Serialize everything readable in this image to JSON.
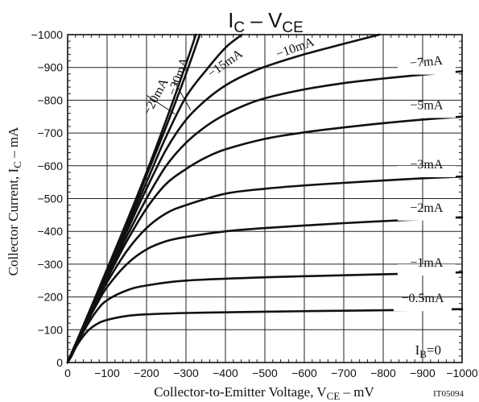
{
  "chart_data": {
    "type": "line",
    "title": {
      "main": "I",
      "sub1": "C",
      "mid": " – V",
      "sub2": "CE"
    },
    "xlabel": {
      "pre": "Collector-to-Emitter Voltage, V",
      "sub": "CE",
      "post": " – mV"
    },
    "ylabel": {
      "pre": "Collector Current, I",
      "sub": "C",
      "post": " – mA"
    },
    "code": "IT05094",
    "xlim": [
      0,
      -1000
    ],
    "ylim": [
      0,
      -1000
    ],
    "xticks": [
      0,
      -100,
      -200,
      -300,
      -400,
      -500,
      -600,
      -700,
      -800,
      -900,
      -1000
    ],
    "yticks": [
      0,
      -100,
      -200,
      -300,
      -400,
      -500,
      -600,
      -700,
      -800,
      -900,
      -1000
    ],
    "xtick_labels": [
      "0",
      "−100",
      "−200",
      "−300",
      "−400",
      "−500",
      "−600",
      "−700",
      "−800",
      "−900",
      "−1000"
    ],
    "ytick_labels": [
      "0",
      "−100",
      "−200",
      "−300",
      "−400",
      "−500",
      "−600",
      "−700",
      "−800",
      "−900",
      "−1000"
    ],
    "grid": true,
    "series": [
      {
        "name": "−0.5mA",
        "x": [
          0,
          -10,
          -25,
          -50,
          -75,
          -100,
          -150,
          -200,
          -300,
          -500,
          -700,
          -900,
          -1000
        ],
        "y": [
          0,
          -20,
          -55,
          -95,
          -118,
          -130,
          -142,
          -147,
          -151,
          -155,
          -158,
          -161,
          -163
        ]
      },
      {
        "name": "−1mA",
        "x": [
          0,
          -10,
          -25,
          -50,
          -75,
          -100,
          -150,
          -200,
          -300,
          -500,
          -700,
          -900,
          -1000
        ],
        "y": [
          0,
          -25,
          -60,
          -115,
          -160,
          -190,
          -220,
          -235,
          -250,
          -260,
          -266,
          -272,
          -275
        ]
      },
      {
        "name": "−2mA",
        "x": [
          0,
          -10,
          -25,
          -50,
          -75,
          -100,
          -150,
          -200,
          -250,
          -300,
          -400,
          -500,
          -700,
          -900,
          -1000
        ],
        "y": [
          0,
          -28,
          -65,
          -125,
          -180,
          -230,
          -300,
          -345,
          -370,
          -383,
          -400,
          -410,
          -425,
          -437,
          -443
        ]
      },
      {
        "name": "−3mA",
        "x": [
          0,
          -10,
          -25,
          -50,
          -75,
          -100,
          -150,
          -200,
          -250,
          -300,
          -400,
          -500,
          -600,
          -700,
          -800,
          -900,
          -1000
        ],
        "y": [
          0,
          -28,
          -65,
          -128,
          -190,
          -245,
          -340,
          -410,
          -455,
          -480,
          -515,
          -530,
          -540,
          -548,
          -555,
          -562,
          -567
        ]
      },
      {
        "name": "−5mA",
        "x": [
          0,
          -10,
          -25,
          -50,
          -75,
          -100,
          -150,
          -200,
          -250,
          -300,
          -350,
          -400,
          -500,
          -600,
          -700,
          -800,
          -900,
          -1000
        ],
        "y": [
          0,
          -28,
          -66,
          -130,
          -195,
          -255,
          -370,
          -470,
          -545,
          -590,
          -625,
          -650,
          -682,
          -702,
          -717,
          -730,
          -741,
          -750
        ]
      },
      {
        "name": "−7mA",
        "x": [
          0,
          -10,
          -25,
          -50,
          -75,
          -100,
          -150,
          -200,
          -250,
          -300,
          -350,
          -400,
          -450,
          -500,
          -600,
          -700,
          -800,
          -900,
          -1000
        ],
        "y": [
          0,
          -28,
          -67,
          -132,
          -198,
          -262,
          -385,
          -500,
          -600,
          -670,
          -720,
          -757,
          -785,
          -806,
          -833,
          -852,
          -866,
          -878,
          -888
        ]
      },
      {
        "name": "−10mA",
        "x": [
          0,
          -10,
          -25,
          -50,
          -75,
          -100,
          -150,
          -200,
          -250,
          -300,
          -350,
          -400,
          -450,
          -500,
          -600,
          -700,
          -790
        ],
        "y": [
          0,
          -28,
          -68,
          -134,
          -200,
          -268,
          -400,
          -530,
          -650,
          -740,
          -800,
          -845,
          -877,
          -902,
          -940,
          -972,
          -1000
        ]
      },
      {
        "name": "−15mA",
        "x": [
          0,
          -10,
          -25,
          -50,
          -75,
          -100,
          -150,
          -200,
          -250,
          -300,
          -350,
          -400,
          -442
        ],
        "y": [
          0,
          -28,
          -68,
          -136,
          -204,
          -272,
          -410,
          -550,
          -690,
          -810,
          -890,
          -960,
          -1000
        ]
      },
      {
        "name": "−20mA",
        "x": [
          0,
          -10,
          -25,
          -50,
          -75,
          -100,
          -150,
          -200,
          -250,
          -300,
          -335
        ],
        "y": [
          0,
          -29,
          -70,
          -140,
          -210,
          -280,
          -420,
          -570,
          -720,
          -880,
          -1000
        ]
      },
      {
        "name": "−30mA",
        "x": [
          0,
          -10,
          -25,
          -50,
          -75,
          -100,
          -150,
          -200,
          -250,
          -300,
          -325
        ],
        "y": [
          0,
          -29,
          -71,
          -142,
          -213,
          -285,
          -430,
          -580,
          -740,
          -910,
          -1000
        ]
      },
      {
        "name": "IB=0",
        "label_parts": {
          "main": "I",
          "sub": "B",
          "post": "=0"
        },
        "x": [
          0,
          -1000
        ],
        "y": [
          0,
          0
        ]
      }
    ],
    "labels": [
      {
        "series": "−20mA",
        "text": "−20mA",
        "at": [
          -232,
          -805
        ],
        "rotate": -62,
        "anchor": "middle",
        "leader": [
          [
            -200,
            -815
          ],
          [
            -272,
            -758
          ]
        ]
      },
      {
        "series": "−30mA",
        "text": "−30mA",
        "at": [
          -290,
          -868
        ],
        "rotate": -70,
        "anchor": "middle",
        "leader": [
          [
            -270,
            -858
          ],
          [
            -312,
            -770
          ]
        ]
      },
      {
        "series": "−15mA",
        "text": "−15mA",
        "at": [
          -405,
          -902
        ],
        "rotate": -35,
        "anchor": "middle"
      },
      {
        "series": "−10mA",
        "text": "−10mA",
        "at": [
          -580,
          -948
        ],
        "rotate": -20,
        "anchor": "middle"
      },
      {
        "series": "−7mA",
        "text": "−7mA",
        "at": [
          -910,
          -905
        ],
        "rotate": -5,
        "anchor": "middle"
      },
      {
        "series": "−5mA",
        "text": "−5mA",
        "at": [
          -910,
          -773
        ],
        "rotate": 0,
        "anchor": "middle"
      },
      {
        "series": "−3mA",
        "text": "−3mA",
        "at": [
          -910,
          -592
        ],
        "rotate": 0,
        "anchor": "middle"
      },
      {
        "series": "−2mA",
        "text": "−2mA",
        "at": [
          -910,
          -460
        ],
        "rotate": 0,
        "anchor": "middle"
      },
      {
        "series": "−1mA",
        "text": "−1mA",
        "at": [
          -910,
          -292
        ],
        "rotate": 0,
        "anchor": "middle"
      },
      {
        "series": "−0.5mA",
        "text": "−0.5mA",
        "at": [
          -900,
          -184
        ],
        "rotate": 0,
        "anchor": "middle"
      }
    ]
  }
}
